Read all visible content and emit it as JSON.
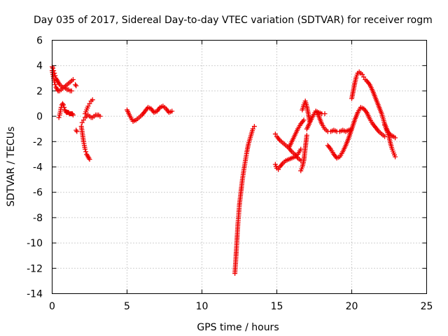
{
  "chart_data": {
    "type": "scatter",
    "title": "Day 035 of 2017, Sidereal Day-to-day VTEC variation (SDTVAR) for receiver rogm",
    "xlabel": "GPS time / hours",
    "ylabel": "SDTVAR / TECUs",
    "xlim": [
      0,
      25
    ],
    "ylim": [
      -14,
      6
    ],
    "xticks": [
      0,
      5,
      10,
      15,
      20,
      25
    ],
    "yticks": [
      -14,
      -12,
      -10,
      -8,
      -6,
      -4,
      -2,
      0,
      2,
      4,
      6
    ],
    "xtick_labels": [
      "0",
      "5",
      "10",
      "15",
      "20",
      "25"
    ],
    "ytick_labels": [
      "-14",
      "-12",
      "-10",
      "-8",
      "-6",
      "-4",
      "-2",
      "0",
      "2",
      "4",
      "6"
    ],
    "grid": true,
    "marker": "+",
    "marker_color": "#ee0000",
    "series": [
      {
        "name": "SDTVAR",
        "segments": [
          {
            "x": [
              0.0,
              0.05,
              0.1,
              0.15,
              0.2,
              0.25,
              0.3,
              0.35,
              0.4,
              0.45,
              0.5,
              0.6,
              0.7,
              0.8,
              0.9,
              1.0,
              1.1,
              1.2,
              1.3
            ],
            "y": [
              3.9,
              3.8,
              3.6,
              3.4,
              3.2,
              3.0,
              2.9,
              2.8,
              2.7,
              2.6,
              2.5,
              2.4,
              2.3,
              2.3,
              2.2,
              2.1,
              2.1,
              2.0,
              2.0
            ]
          },
          {
            "x": [
              0.0,
              0.05,
              0.1,
              0.15,
              0.2,
              0.25,
              0.3,
              0.35,
              0.4
            ],
            "y": [
              3.6,
              3.3,
              3.0,
              2.7,
              2.5,
              2.3,
              2.2,
              2.1,
              2.0
            ]
          },
          {
            "x": [
              0.4,
              0.5,
              0.6,
              0.7,
              0.8,
              0.9,
              1.0,
              1.1,
              1.2,
              1.3,
              1.4
            ],
            "y": [
              2.0,
              2.0,
              2.1,
              2.2,
              2.3,
              2.4,
              2.5,
              2.6,
              2.7,
              2.8,
              2.9
            ]
          },
          {
            "x": [
              0.45,
              0.5,
              0.55,
              0.6,
              0.65,
              0.7,
              0.75,
              0.8,
              0.85,
              0.9,
              0.95,
              1.0,
              1.05,
              1.1,
              1.15,
              1.2,
              1.25,
              1.3,
              1.35,
              1.4
            ],
            "y": [
              -0.1,
              0.1,
              0.4,
              0.7,
              0.9,
              1.0,
              0.9,
              0.7,
              0.5,
              0.4,
              0.3,
              0.3,
              0.3,
              0.3,
              0.2,
              0.2,
              0.2,
              0.2,
              0.2,
              0.1
            ]
          },
          {
            "x": [
              1.55,
              1.6
            ],
            "y": [
              2.5,
              2.4
            ]
          },
          {
            "x": [
              1.6,
              1.65
            ],
            "y": [
              -1.1,
              -1.2
            ]
          },
          {
            "x": [
              1.95,
              2.0,
              2.05,
              2.1,
              2.15,
              2.2,
              2.25,
              2.3,
              2.35,
              2.4,
              2.45,
              2.5
            ],
            "y": [
              -0.8,
              -1.2,
              -1.6,
              -2.0,
              -2.3,
              -2.6,
              -2.8,
              -3.0,
              -3.1,
              -3.2,
              -3.3,
              -3.4
            ]
          },
          {
            "x": [
              2.0,
              2.1,
              2.2,
              2.3,
              2.4,
              2.5,
              2.6,
              2.7,
              2.8,
              2.9,
              3.0,
              3.1,
              3.2
            ],
            "y": [
              -0.5,
              -0.3,
              -0.1,
              0.0,
              0.1,
              0.0,
              -0.1,
              -0.1,
              0.0,
              0.1,
              0.1,
              0.1,
              0.0
            ]
          },
          {
            "x": [
              2.2,
              2.3,
              2.4,
              2.5,
              2.6,
              2.7
            ],
            "y": [
              0.2,
              0.5,
              0.8,
              1.0,
              1.2,
              1.3
            ]
          },
          {
            "x": [
              5.0,
              5.2,
              5.4,
              5.6,
              5.8,
              6.0,
              6.2,
              6.4,
              6.6,
              6.8,
              7.0,
              7.2,
              7.4,
              7.6,
              7.8,
              8.0
            ],
            "y": [
              0.5,
              0.0,
              -0.4,
              -0.3,
              -0.1,
              0.1,
              0.4,
              0.7,
              0.6,
              0.3,
              0.4,
              0.7,
              0.8,
              0.6,
              0.3,
              0.4
            ]
          },
          {
            "x": [
              12.2,
              12.25,
              12.3,
              12.35,
              12.4,
              12.45,
              12.5,
              12.6,
              12.7,
              12.8,
              12.9,
              13.0,
              13.1,
              13.2,
              13.3,
              13.4,
              13.5
            ],
            "y": [
              -12.4,
              -11.5,
              -10.5,
              -9.5,
              -8.5,
              -7.8,
              -7.0,
              -6.0,
              -5.0,
              -4.2,
              -3.5,
              -2.8,
              -2.2,
              -1.8,
              -1.4,
              -1.0,
              -0.8
            ]
          },
          {
            "x": [
              14.9,
              15.0,
              15.2,
              15.4,
              15.6,
              15.8,
              16.0,
              16.2,
              16.4,
              16.6
            ],
            "y": [
              -1.4,
              -1.6,
              -1.9,
              -2.1,
              -2.3,
              -2.5,
              -2.8,
              -3.0,
              -3.3,
              -3.5
            ]
          },
          {
            "x": [
              14.9,
              15.0,
              15.1,
              15.2,
              15.4,
              15.6,
              15.8,
              16.0,
              16.2,
              16.4,
              16.6
            ],
            "y": [
              -3.8,
              -4.1,
              -4.2,
              -4.0,
              -3.7,
              -3.5,
              -3.4,
              -3.3,
              -3.2,
              -3.0,
              -2.6
            ]
          },
          {
            "x": [
              15.8,
              16.0,
              16.2,
              16.4,
              16.6,
              16.8
            ],
            "y": [
              -2.5,
              -2.0,
              -1.5,
              -1.0,
              -0.6,
              -0.3
            ]
          },
          {
            "x": [
              16.6,
              16.7,
              16.8,
              16.9,
              17.0
            ],
            "y": [
              -4.3,
              -4.0,
              -3.5,
              -2.5,
              -1.5
            ]
          },
          {
            "x": [
              16.7,
              16.8,
              16.9,
              17.0,
              17.1,
              17.2
            ],
            "y": [
              0.5,
              0.9,
              1.2,
              0.8,
              0.2,
              -0.4
            ]
          },
          {
            "x": [
              17.0,
              17.2,
              17.4,
              17.6,
              17.8,
              18.0,
              18.2,
              18.4,
              18.6,
              18.8,
              19.0,
              19.2,
              19.4,
              19.6,
              19.8,
              20.0
            ],
            "y": [
              -1.0,
              -0.5,
              0.0,
              0.4,
              0.0,
              -0.6,
              -1.0,
              -1.2,
              -1.2,
              -1.1,
              -1.2,
              -1.2,
              -1.1,
              -1.2,
              -1.1,
              -1.0
            ]
          },
          {
            "x": [
              17.6,
              17.8,
              18.0,
              18.2
            ],
            "y": [
              0.4,
              0.3,
              0.2,
              0.2
            ]
          },
          {
            "x": [
              18.4,
              18.6,
              18.8,
              19.0,
              19.2,
              19.4,
              19.6,
              19.8,
              20.0,
              20.2,
              20.4,
              20.6,
              20.8,
              21.0,
              21.2,
              21.4,
              21.6,
              21.8,
              22.0,
              22.2
            ],
            "y": [
              -2.3,
              -2.6,
              -3.0,
              -3.3,
              -3.2,
              -2.8,
              -2.3,
              -1.7,
              -1.0,
              -0.3,
              0.3,
              0.7,
              0.6,
              0.3,
              -0.2,
              -0.6,
              -0.9,
              -1.2,
              -1.4,
              -1.6
            ]
          },
          {
            "x": [
              20.0,
              20.1,
              20.2,
              20.3,
              20.4,
              20.5,
              20.6,
              20.7,
              20.8,
              20.9,
              21.0,
              21.2,
              21.4,
              21.6,
              21.8,
              22.0,
              22.2,
              22.4,
              22.6,
              22.8,
              22.9
            ],
            "y": [
              1.4,
              2.0,
              2.6,
              3.1,
              3.4,
              3.5,
              3.4,
              3.3,
              3.1,
              2.9,
              2.8,
              2.5,
              2.0,
              1.4,
              0.8,
              0.2,
              -0.6,
              -1.2,
              -1.5,
              -1.6,
              -1.7
            ]
          },
          {
            "x": [
              22.2,
              22.3,
              22.4,
              22.5,
              22.6,
              22.7,
              22.8,
              22.9
            ],
            "y": [
              -0.7,
              -1.0,
              -1.3,
              -1.7,
              -2.2,
              -2.6,
              -2.9,
              -3.2
            ]
          }
        ]
      }
    ]
  }
}
